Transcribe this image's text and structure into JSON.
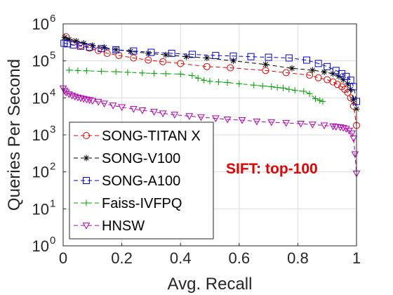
{
  "chart_data": {
    "type": "line",
    "title": "",
    "xlabel": "Avg. Recall",
    "ylabel": "Queries Per Second",
    "xlim": [
      0,
      1
    ],
    "ylim": [
      1,
      1000000
    ],
    "yscale": "log",
    "grid": true,
    "legend_position": "bottom-left",
    "annotation": {
      "text": "SIFT: top-100",
      "color": "#e60000"
    },
    "xticks": [
      {
        "v": 0,
        "label": "0"
      },
      {
        "v": 0.2,
        "label": "0.2"
      },
      {
        "v": 0.4,
        "label": "0.4"
      },
      {
        "v": 0.6,
        "label": "0.6"
      },
      {
        "v": 0.8,
        "label": "0.8"
      },
      {
        "v": 1,
        "label": "1"
      }
    ],
    "yticks": [
      {
        "v": 1,
        "exp": "0"
      },
      {
        "v": 10,
        "exp": "1"
      },
      {
        "v": 100,
        "exp": "2"
      },
      {
        "v": 1000,
        "exp": "3"
      },
      {
        "v": 10000,
        "exp": "4"
      },
      {
        "v": 100000,
        "exp": "5"
      },
      {
        "v": 1000000,
        "exp": "6"
      }
    ],
    "ytick_base": "10",
    "series": [
      {
        "name": "SONG-TITAN X",
        "color": "#e60000",
        "marker": "circle",
        "dash": "6,4",
        "x": [
          0.01,
          0.035,
          0.06,
          0.09,
          0.12,
          0.15,
          0.19,
          0.24,
          0.29,
          0.34,
          0.4,
          0.49,
          0.57,
          0.69,
          0.76,
          0.84,
          0.87,
          0.9,
          0.92,
          0.935,
          0.95,
          0.96,
          0.97,
          0.98,
          0.99,
          1.0
        ],
        "y": [
          450000,
          320000,
          260000,
          220000,
          190000,
          160000,
          140000,
          120000,
          105000,
          95000,
          85000,
          70000,
          65000,
          55000,
          48000,
          41000,
          35000,
          31000,
          27000,
          23000,
          20000,
          17000,
          14000,
          10000,
          6000,
          1800
        ]
      },
      {
        "name": "SONG-V100",
        "color": "#000000",
        "marker": "asterisk",
        "dash": "6,4",
        "x": [
          0.005,
          0.02,
          0.045,
          0.07,
          0.1,
          0.14,
          0.18,
          0.23,
          0.29,
          0.35,
          0.42,
          0.49,
          0.58,
          0.69,
          0.78,
          0.85,
          0.89,
          0.92,
          0.94,
          0.955,
          0.97,
          0.98,
          0.99,
          1.0
        ],
        "y": [
          430000,
          380000,
          340000,
          300000,
          260000,
          230000,
          200000,
          180000,
          160000,
          145000,
          130000,
          120000,
          100000,
          80000,
          63000,
          56000,
          50000,
          45000,
          38000,
          31000,
          24000,
          17000,
          9000,
          5000
        ]
      },
      {
        "name": "SONG-A100",
        "color": "#0000cc",
        "marker": "square",
        "dash": "6,4",
        "x": [
          0.003,
          0.015,
          0.035,
          0.06,
          0.09,
          0.13,
          0.18,
          0.24,
          0.3,
          0.37,
          0.44,
          0.52,
          0.58,
          0.64,
          0.7,
          0.77,
          0.83,
          0.87,
          0.9,
          0.93,
          0.95,
          0.965,
          0.98,
          0.99,
          1.0
        ],
        "y": [
          300000,
          290000,
          270000,
          250000,
          235000,
          215000,
          200000,
          185000,
          170000,
          160000,
          150000,
          140000,
          135000,
          130000,
          125000,
          120000,
          105000,
          85000,
          70000,
          55000,
          45000,
          38000,
          30000,
          20000,
          8000
        ]
      },
      {
        "name": "Faiss-IVFPQ",
        "color": "#00a000",
        "marker": "plus",
        "dash": "6,4",
        "x": [
          0.02,
          0.05,
          0.08,
          0.13,
          0.18,
          0.22,
          0.27,
          0.31,
          0.35,
          0.4,
          0.44,
          0.46,
          0.48,
          0.5,
          0.53,
          0.56,
          0.6,
          0.65,
          0.68,
          0.71,
          0.73,
          0.75,
          0.77,
          0.79,
          0.82,
          0.84,
          0.86,
          0.875,
          0.885
        ],
        "y": [
          56000,
          55000,
          54000,
          52000,
          51000,
          49000,
          47000,
          46000,
          45000,
          44000,
          40000,
          34000,
          30000,
          28000,
          27000,
          26000,
          24000,
          22000,
          21000,
          20000,
          19000,
          18500,
          17000,
          16000,
          15000,
          13000,
          9500,
          8500,
          8000
        ]
      },
      {
        "name": "HNSW",
        "color": "#b000b0",
        "marker": "triangle-down",
        "dash": "6,4",
        "x": [
          0.0,
          0.005,
          0.01,
          0.02,
          0.03,
          0.04,
          0.05,
          0.06,
          0.07,
          0.08,
          0.09,
          0.1,
          0.12,
          0.14,
          0.17,
          0.2,
          0.24,
          0.27,
          0.31,
          0.34,
          0.38,
          0.43,
          0.47,
          0.52,
          0.56,
          0.61,
          0.66,
          0.71,
          0.76,
          0.81,
          0.85,
          0.89,
          0.92,
          0.93,
          0.945,
          0.955,
          0.965,
          0.975,
          0.985,
          0.99,
          0.995,
          1.0
        ],
        "y": [
          18000,
          15500,
          14000,
          12500,
          11500,
          10800,
          10200,
          9800,
          9400,
          9000,
          8700,
          8300,
          7800,
          7000,
          6200,
          5600,
          5000,
          4600,
          4200,
          3800,
          3500,
          3200,
          3000,
          2800,
          2600,
          2500,
          2300,
          2200,
          2100,
          2000,
          1900,
          1800,
          1700,
          1650,
          1600,
          1550,
          1450,
          1300,
          1100,
          800,
          300,
          90
        ]
      }
    ]
  }
}
